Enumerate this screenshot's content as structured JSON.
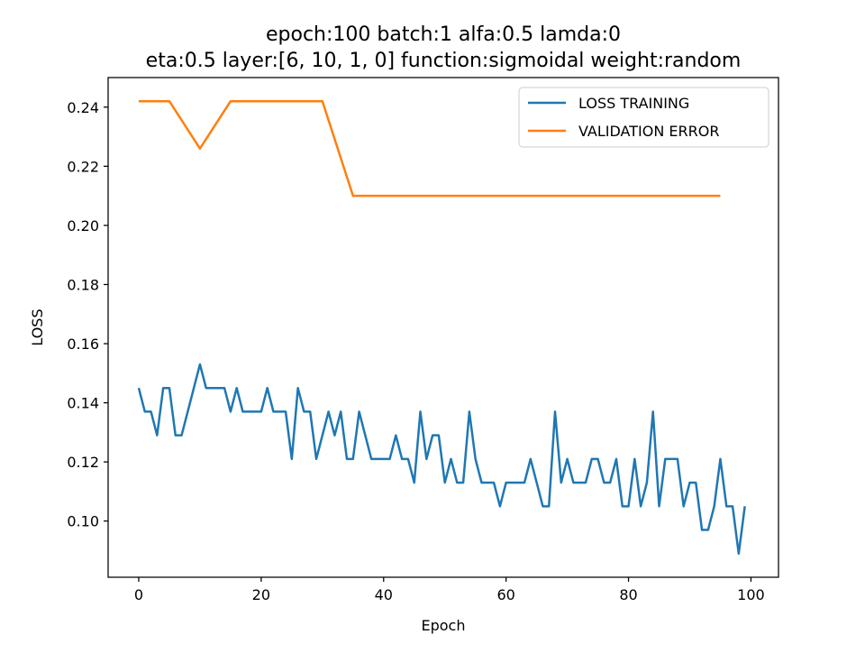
{
  "chart_data": {
    "type": "line",
    "title_lines": [
      "epoch:100 batch:1 alfa:0.5 lamda:0",
      "eta:0.5 layer:[6, 10, 1, 0] function:sigmoidal weight:random"
    ],
    "xlabel": "Epoch",
    "ylabel": "LOSS",
    "xlim": [
      -5,
      104.5
    ],
    "ylim": [
      0.081,
      0.25
    ],
    "xticks": [
      0,
      20,
      40,
      60,
      80,
      100
    ],
    "xtick_labels": [
      "0",
      "20",
      "40",
      "60",
      "80",
      "100"
    ],
    "yticks": [
      0.1,
      0.12,
      0.14,
      0.16,
      0.18,
      0.2,
      0.22,
      0.24
    ],
    "ytick_labels": [
      "0.10",
      "0.12",
      "0.14",
      "0.16",
      "0.18",
      "0.20",
      "0.22",
      "0.24"
    ],
    "grid": false,
    "legend_position": "upper right",
    "series": [
      {
        "name": "LOSS TRAINING",
        "color": "#1f77b4",
        "x": [
          0,
          1,
          2,
          3,
          4,
          5,
          6,
          7,
          8,
          9,
          10,
          11,
          12,
          13,
          14,
          15,
          16,
          17,
          18,
          19,
          20,
          21,
          22,
          23,
          24,
          25,
          26,
          27,
          28,
          29,
          30,
          31,
          32,
          33,
          34,
          35,
          36,
          37,
          38,
          39,
          40,
          41,
          42,
          43,
          44,
          45,
          46,
          47,
          48,
          49,
          50,
          51,
          52,
          53,
          54,
          55,
          56,
          57,
          58,
          59,
          60,
          61,
          62,
          63,
          64,
          65,
          66,
          67,
          68,
          69,
          70,
          71,
          72,
          73,
          74,
          75,
          76,
          77,
          78,
          79,
          80,
          81,
          82,
          83,
          84,
          85,
          86,
          87,
          88,
          89,
          90,
          91,
          92,
          93,
          94,
          95,
          96,
          97,
          98,
          99
        ],
        "y": [
          0.145,
          0.137,
          0.137,
          0.129,
          0.145,
          0.145,
          0.129,
          0.129,
          0.137,
          0.145,
          0.153,
          0.145,
          0.145,
          0.145,
          0.145,
          0.137,
          0.145,
          0.137,
          0.137,
          0.137,
          0.137,
          0.145,
          0.137,
          0.137,
          0.137,
          0.121,
          0.145,
          0.137,
          0.137,
          0.121,
          0.129,
          0.137,
          0.129,
          0.137,
          0.121,
          0.121,
          0.137,
          0.129,
          0.121,
          0.121,
          0.121,
          0.121,
          0.129,
          0.121,
          0.121,
          0.113,
          0.137,
          0.121,
          0.129,
          0.129,
          0.113,
          0.121,
          0.113,
          0.113,
          0.137,
          0.121,
          0.113,
          0.113,
          0.113,
          0.105,
          0.113,
          0.113,
          0.113,
          0.113,
          0.121,
          0.113,
          0.105,
          0.105,
          0.137,
          0.113,
          0.121,
          0.113,
          0.113,
          0.113,
          0.121,
          0.121,
          0.113,
          0.113,
          0.121,
          0.105,
          0.105,
          0.121,
          0.105,
          0.113,
          0.137,
          0.105,
          0.121,
          0.121,
          0.121,
          0.105,
          0.113,
          0.113,
          0.097,
          0.097,
          0.105,
          0.121,
          0.105,
          0.105,
          0.089,
          0.105
        ]
      },
      {
        "name": "VALIDATION ERROR",
        "color": "#ff7f0e",
        "x": [
          0,
          5,
          10,
          15,
          20,
          25,
          30,
          35,
          40,
          45,
          50,
          55,
          60,
          65,
          70,
          75,
          80,
          85,
          90,
          95
        ],
        "y": [
          0.242,
          0.242,
          0.226,
          0.242,
          0.242,
          0.242,
          0.242,
          0.21,
          0.21,
          0.21,
          0.21,
          0.21,
          0.21,
          0.21,
          0.21,
          0.21,
          0.21,
          0.21,
          0.21,
          0.21
        ]
      }
    ]
  }
}
